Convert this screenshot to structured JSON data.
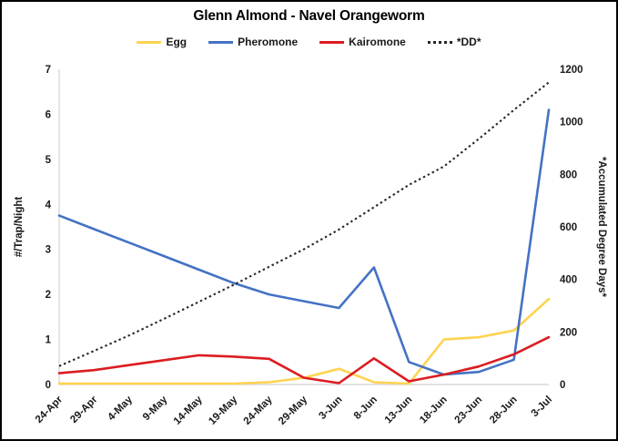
{
  "window": {
    "background": "#ffffff",
    "border_color": "#000000"
  },
  "chart_data": {
    "type": "line",
    "title": "Glenn Almond - Navel Orangeworm",
    "legend_position": "top",
    "gridlines": false,
    "axis_line_color": "#d9d9d9",
    "categories": [
      "24-Apr",
      "29-Apr",
      "4-May",
      "9-May",
      "14-May",
      "19-May",
      "24-May",
      "29-May",
      "3-Jun",
      "8-Jun",
      "13-Jun",
      "18-Jun",
      "23-Jun",
      "28-Jun",
      "3-Jul"
    ],
    "left_axis": {
      "label": "#/Trap/Night",
      "min": 0,
      "max": 7,
      "ticks": [
        0,
        1,
        2,
        3,
        4,
        5,
        6,
        7
      ]
    },
    "right_axis": {
      "label": "*Accumulated Degree Days*",
      "min": 0,
      "max": 1200,
      "ticks": [
        0,
        200,
        400,
        600,
        800,
        1000,
        1200
      ]
    },
    "series": [
      {
        "name": "Egg",
        "color": "#FFD34F",
        "style": "solid",
        "axis": "left",
        "values": [
          0.02,
          0.02,
          0.02,
          0.02,
          0.02,
          0.02,
          0.05,
          0.15,
          0.35,
          0.05,
          0.02,
          1.0,
          1.05,
          1.2,
          1.9
        ]
      },
      {
        "name": "Pheromone",
        "color": "#4472C4",
        "style": "solid",
        "axis": "left",
        "values": [
          3.75,
          3.45,
          3.15,
          2.85,
          2.55,
          2.25,
          2.0,
          1.85,
          1.7,
          2.6,
          0.5,
          0.22,
          0.28,
          0.55,
          6.1
        ]
      },
      {
        "name": "Kairomone",
        "color": "#DC1C21",
        "style": "solid",
        "axis": "left",
        "values": [
          0.25,
          0.32,
          0.43,
          0.54,
          0.65,
          0.62,
          0.57,
          0.15,
          0.03,
          0.58,
          0.07,
          0.22,
          0.4,
          0.67,
          1.05
        ]
      },
      {
        "name": "*DD*",
        "color": "#262626",
        "style": "dotted",
        "axis": "right",
        "values": [
          70,
          128,
          187,
          250,
          315,
          380,
          448,
          515,
          590,
          675,
          760,
          830,
          935,
          1045,
          1150
        ]
      }
    ]
  }
}
